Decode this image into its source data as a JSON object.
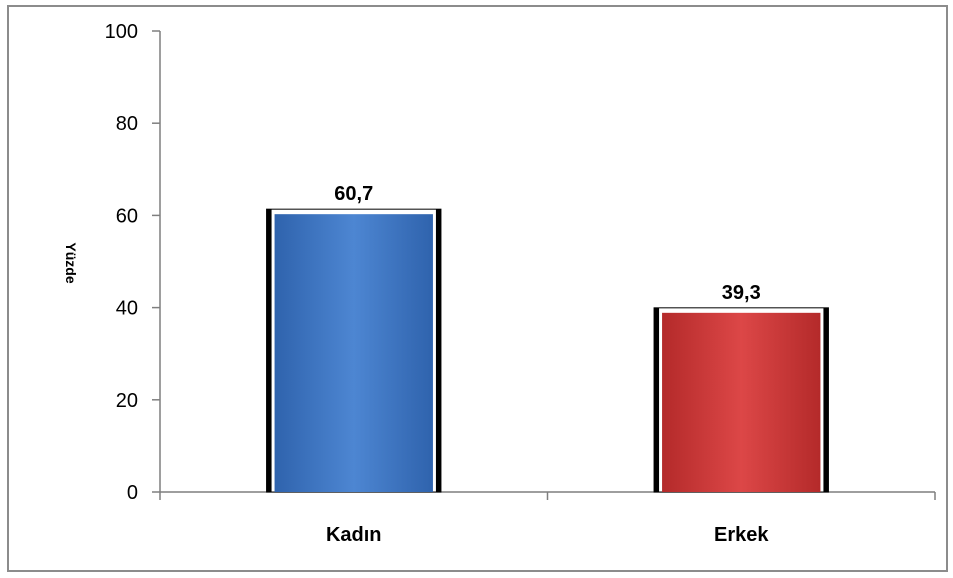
{
  "chart_data": {
    "type": "bar",
    "categories": [
      "Kadın",
      "Erkek"
    ],
    "values": [
      60.7,
      39.3
    ],
    "value_labels": [
      "60,7",
      "39,3"
    ],
    "title": "",
    "xlabel": "",
    "ylabel": "Yüzde",
    "ylim": [
      0,
      100
    ],
    "yticks": [
      0,
      20,
      40,
      60,
      80,
      100
    ],
    "ytick_labels": [
      "0",
      "20",
      "40",
      "60",
      "80",
      "100"
    ],
    "grid": false,
    "legend": "none",
    "colors": [
      "#4a7fc9",
      "#d64040"
    ],
    "outline_color": "#000000"
  }
}
